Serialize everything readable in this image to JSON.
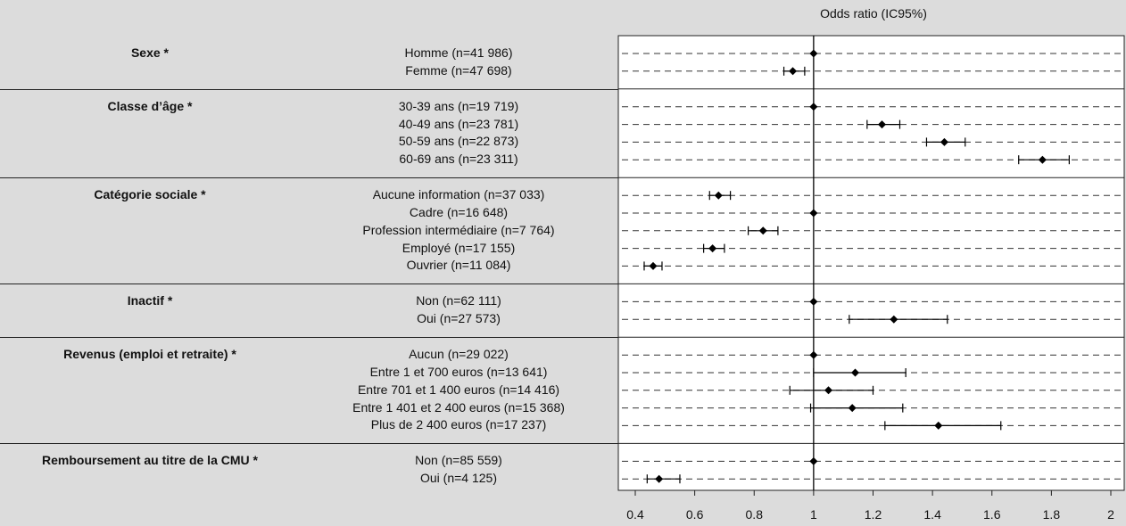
{
  "chart_data": {
    "type": "forest",
    "axis_title": "Odds ratio (IC95%)",
    "x_ticks": [
      "0.4",
      "0.6",
      "0.8",
      "1",
      "1.2",
      "1.4",
      "1.6",
      "1.8",
      "2"
    ],
    "xlim": [
      0.4,
      2.0
    ],
    "reference_line": 1,
    "groups": [
      {
        "title": "Sexe *",
        "rows": [
          {
            "label": "Homme (n=41 986)",
            "or": 1.0,
            "lo": null,
            "hi": null
          },
          {
            "label": "Femme (n=47 698)",
            "or": 0.93,
            "lo": 0.9,
            "hi": 0.97
          }
        ]
      },
      {
        "title": "Classe d’âge *",
        "rows": [
          {
            "label": "30-39 ans (n=19 719)",
            "or": 1.0,
            "lo": null,
            "hi": null
          },
          {
            "label": "40-49 ans (n=23 781)",
            "or": 1.23,
            "lo": 1.18,
            "hi": 1.29
          },
          {
            "label": "50-59 ans (n=22 873)",
            "or": 1.44,
            "lo": 1.38,
            "hi": 1.51
          },
          {
            "label": "60-69 ans (n=23 311)",
            "or": 1.77,
            "lo": 1.69,
            "hi": 1.86
          }
        ]
      },
      {
        "title": "Catégorie sociale *",
        "rows": [
          {
            "label": "Aucune information (n=37 033)",
            "or": 0.68,
            "lo": 0.65,
            "hi": 0.72
          },
          {
            "label": "Cadre (n=16 648)",
            "or": 1.0,
            "lo": null,
            "hi": null
          },
          {
            "label": "Profession intermédiaire (n=7 764)",
            "or": 0.83,
            "lo": 0.78,
            "hi": 0.88
          },
          {
            "label": "Employé (n=17 155)",
            "or": 0.66,
            "lo": 0.63,
            "hi": 0.7
          },
          {
            "label": "Ouvrier (n=11 084)",
            "or": 0.46,
            "lo": 0.43,
            "hi": 0.49
          }
        ]
      },
      {
        "title": "Inactif *",
        "rows": [
          {
            "label": "Non (n=62 111)",
            "or": 1.0,
            "lo": null,
            "hi": null
          },
          {
            "label": "Oui (n=27 573)",
            "or": 1.27,
            "lo": 1.12,
            "hi": 1.45
          }
        ]
      },
      {
        "title": "Revenus (emploi et retraite) *",
        "rows": [
          {
            "label": "Aucun (n=29 022)",
            "or": 1.0,
            "lo": null,
            "hi": null
          },
          {
            "label": "Entre 1 et 700 euros (n=13 641)",
            "or": 1.14,
            "lo": 1.0,
            "hi": 1.31
          },
          {
            "label": "Entre 701 et 1 400 euros (n=14 416)",
            "or": 1.05,
            "lo": 0.92,
            "hi": 1.2
          },
          {
            "label": "Entre 1 401 et 2 400 euros (n=15 368)",
            "or": 1.13,
            "lo": 0.99,
            "hi": 1.3
          },
          {
            "label": "Plus de 2 400 euros (n=17 237)",
            "or": 1.42,
            "lo": 1.24,
            "hi": 1.63
          }
        ]
      },
      {
        "title": "Remboursement au titre de la CMU *",
        "rows": [
          {
            "label": "Non (n=85 559)",
            "or": 1.0,
            "lo": null,
            "hi": null
          },
          {
            "label": "Oui (n=4 125)",
            "or": 0.48,
            "lo": 0.44,
            "hi": 0.55
          }
        ]
      }
    ]
  }
}
